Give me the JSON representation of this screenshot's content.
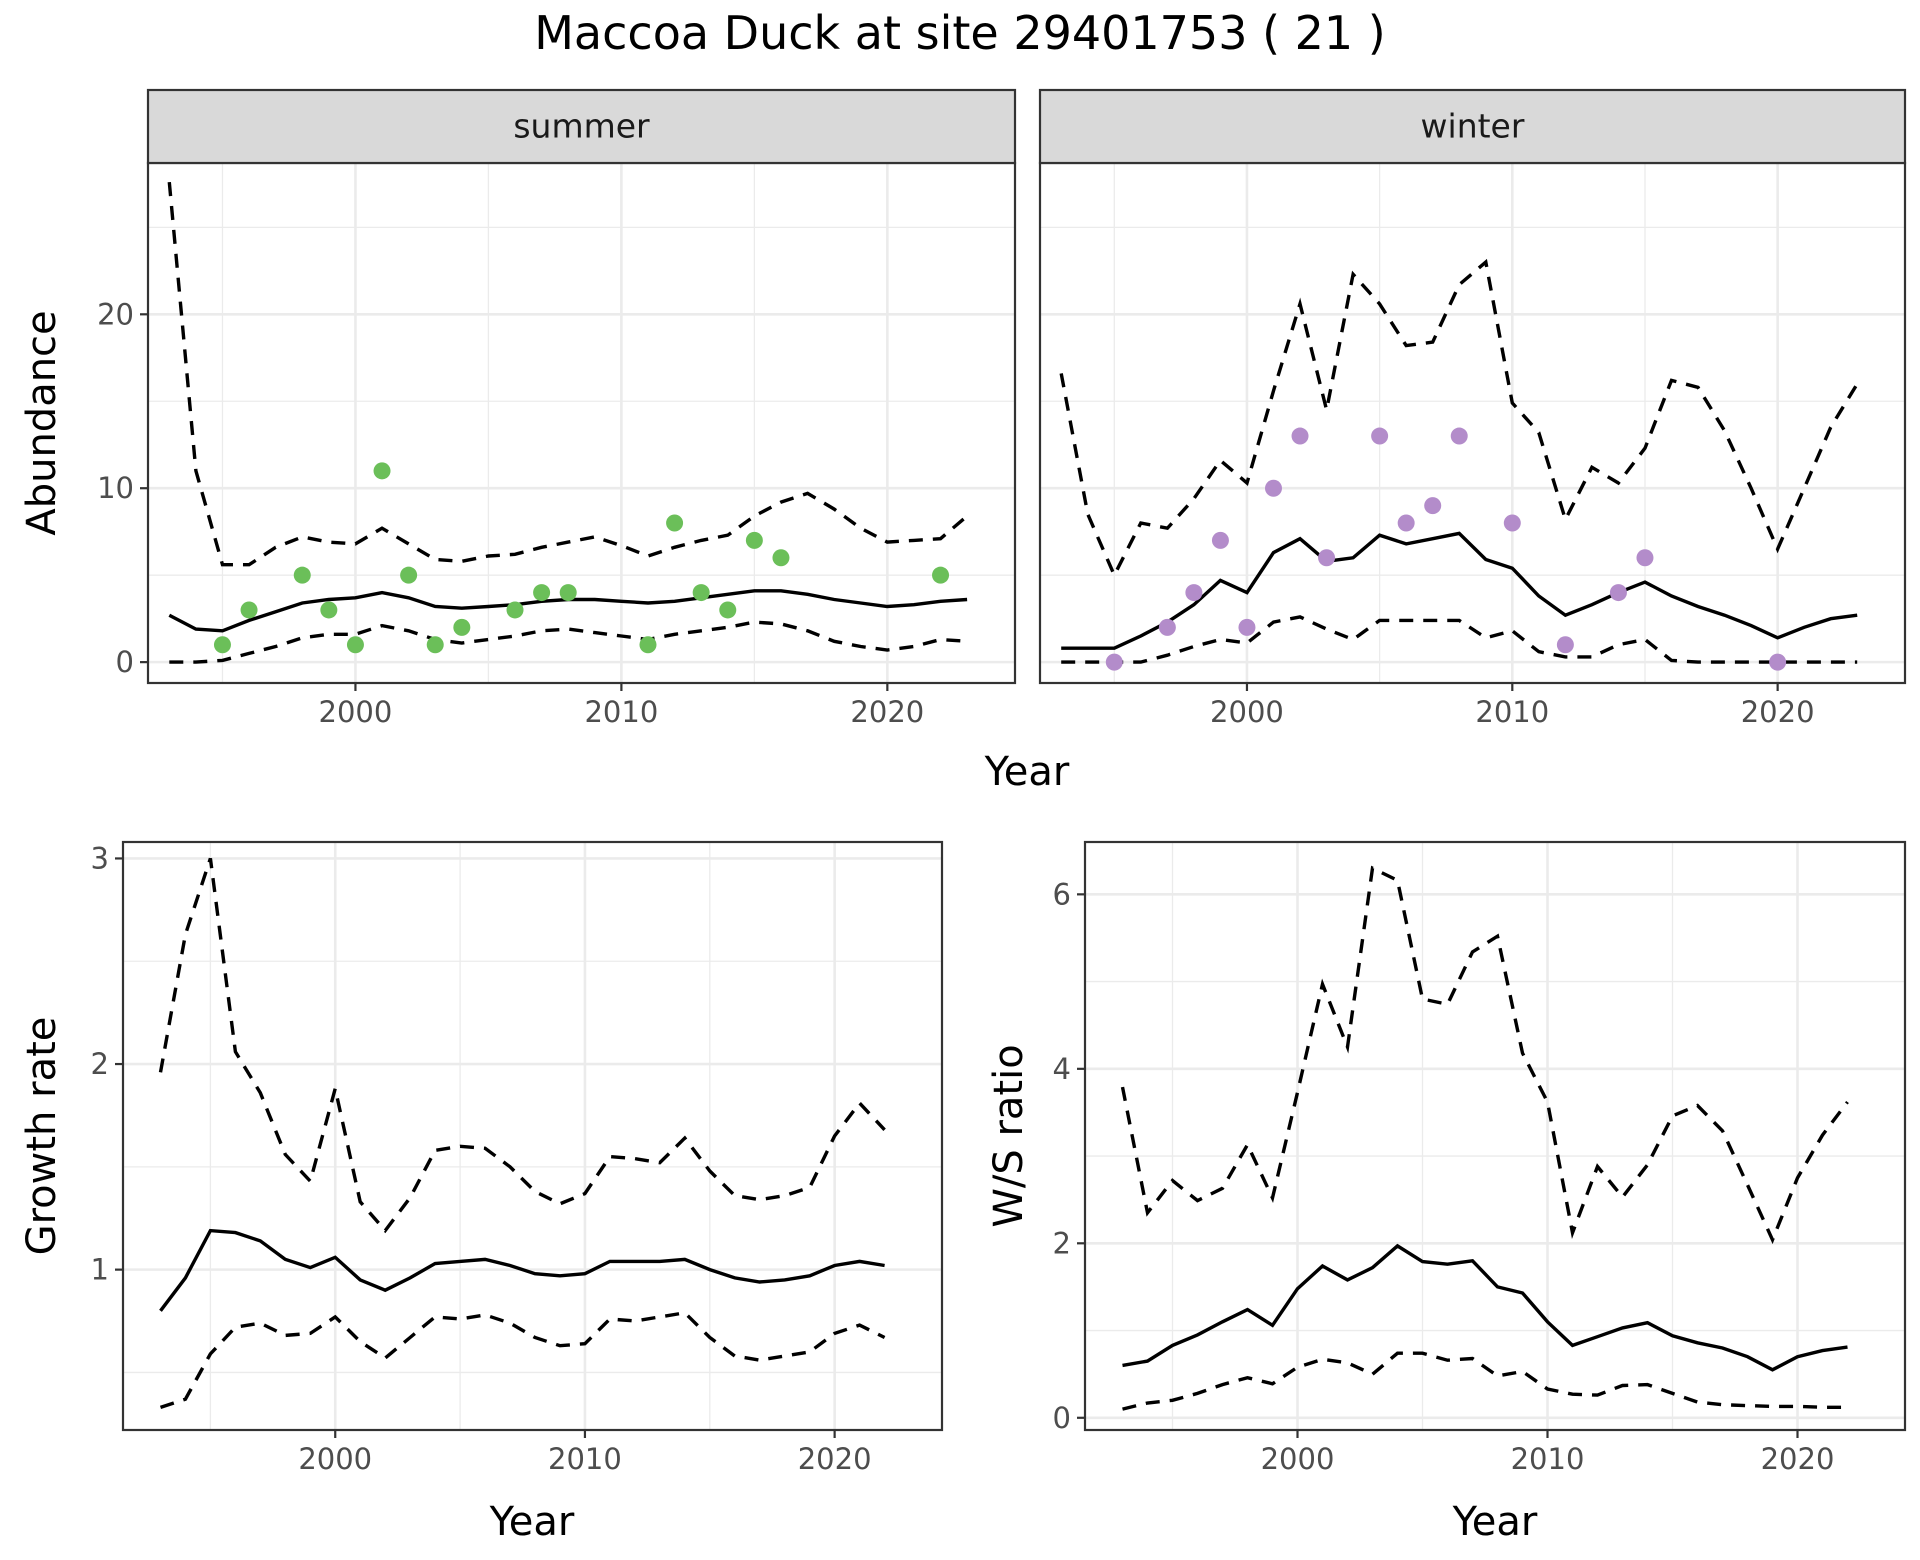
{
  "title": "Maccoa Duck at site 29401753 ( 21 )",
  "colors": {
    "summer_points": "#6bbf59",
    "winter_points": "#b38cca",
    "strip_fill": "#d9d9d9"
  },
  "chart_data": [
    {
      "type": "line",
      "facet": "summer",
      "ylabel": "Abundance",
      "xlabel": "Year",
      "xlim": [
        1992.2,
        2024.8
      ],
      "ylim": [
        -1.2,
        28.7
      ],
      "xticks": [
        2000,
        2010,
        2020
      ],
      "yticks": [
        0,
        10,
        20
      ],
      "x": [
        1993,
        1994,
        1995,
        1996,
        1997,
        1998,
        1999,
        2000,
        2001,
        2002,
        2003,
        2004,
        2005,
        2006,
        2007,
        2008,
        2009,
        2010,
        2011,
        2012,
        2013,
        2014,
        2015,
        2016,
        2017,
        2018,
        2019,
        2020,
        2021,
        2022,
        2023
      ],
      "series": [
        {
          "role": "estimate",
          "values": [
            2.7,
            1.9,
            1.8,
            2.4,
            2.9,
            3.4,
            3.6,
            3.7,
            4.0,
            3.7,
            3.2,
            3.1,
            3.2,
            3.3,
            3.5,
            3.6,
            3.6,
            3.5,
            3.4,
            3.5,
            3.7,
            3.9,
            4.1,
            4.1,
            3.9,
            3.6,
            3.4,
            3.2,
            3.3,
            3.5,
            3.6
          ]
        },
        {
          "role": "upper",
          "values": [
            27.6,
            11.0,
            5.6,
            5.6,
            6.6,
            7.2,
            6.9,
            6.8,
            7.7,
            6.8,
            5.9,
            5.8,
            6.1,
            6.2,
            6.6,
            6.9,
            7.2,
            6.7,
            6.1,
            6.6,
            7.0,
            7.3,
            8.4,
            9.2,
            9.7,
            8.8,
            7.7,
            6.9,
            7.0,
            7.1,
            8.4
          ]
        },
        {
          "role": "lower",
          "values": [
            0.0,
            0.0,
            0.1,
            0.5,
            0.9,
            1.4,
            1.6,
            1.6,
            2.1,
            1.8,
            1.3,
            1.1,
            1.3,
            1.5,
            1.8,
            1.9,
            1.7,
            1.5,
            1.3,
            1.6,
            1.8,
            2.0,
            2.3,
            2.2,
            1.8,
            1.2,
            0.9,
            0.7,
            0.9,
            1.3,
            1.2
          ]
        }
      ],
      "points": {
        "x": [
          1995,
          1996,
          1998,
          1999,
          2000,
          2001,
          2002,
          2003,
          2004,
          2006,
          2007,
          2008,
          2011,
          2012,
          2013,
          2014,
          2015,
          2016,
          2022
        ],
        "y": [
          1,
          3,
          5,
          3,
          1,
          11,
          5,
          1,
          2,
          3,
          4,
          4,
          1,
          8,
          4,
          3,
          7,
          6,
          5
        ]
      }
    },
    {
      "type": "line",
      "facet": "winter",
      "ylabel": "Abundance",
      "xlabel": "Year",
      "xlim": [
        1992.2,
        2024.8
      ],
      "ylim": [
        -1.2,
        28.7
      ],
      "xticks": [
        2000,
        2010,
        2020
      ],
      "yticks": [
        0,
        10,
        20
      ],
      "x": [
        1993,
        1994,
        1995,
        1996,
        1997,
        1998,
        1999,
        2000,
        2001,
        2002,
        2003,
        2004,
        2005,
        2006,
        2007,
        2008,
        2009,
        2010,
        2011,
        2012,
        2013,
        2014,
        2015,
        2016,
        2017,
        2018,
        2019,
        2020,
        2021,
        2022,
        2023
      ],
      "series": [
        {
          "role": "estimate",
          "values": [
            0.8,
            0.8,
            0.8,
            1.5,
            2.3,
            3.3,
            4.7,
            4.0,
            6.3,
            7.1,
            5.8,
            6.0,
            7.3,
            6.8,
            7.1,
            7.4,
            5.9,
            5.4,
            3.8,
            2.7,
            3.3,
            4.0,
            4.6,
            3.8,
            3.2,
            2.7,
            2.1,
            1.4,
            2.0,
            2.5,
            2.7
          ]
        },
        {
          "role": "upper",
          "values": [
            16.6,
            8.5,
            5.0,
            8.0,
            7.7,
            9.4,
            11.6,
            10.3,
            15.6,
            20.6,
            14.5,
            22.3,
            20.6,
            18.2,
            18.4,
            21.7,
            23.0,
            14.9,
            13.2,
            8.2,
            11.2,
            10.3,
            12.3,
            16.2,
            15.8,
            13.3,
            10.0,
            6.5,
            10.0,
            13.5,
            16.0
          ]
        },
        {
          "role": "lower",
          "values": [
            0.0,
            0.0,
            0.0,
            0.0,
            0.4,
            0.9,
            1.3,
            1.1,
            2.3,
            2.6,
            1.9,
            1.3,
            2.4,
            2.4,
            2.4,
            2.4,
            1.4,
            1.8,
            0.6,
            0.3,
            0.3,
            1.0,
            1.3,
            0.1,
            0.0,
            0.0,
            0.0,
            0.0,
            0.0,
            0.0,
            0.0
          ]
        }
      ],
      "points": {
        "x": [
          1995,
          1997,
          1998,
          1999,
          2000,
          2001,
          2002,
          2003,
          2005,
          2006,
          2007,
          2008,
          2010,
          2012,
          2014,
          2015,
          2020
        ],
        "y": [
          0,
          2,
          4,
          7,
          2,
          10,
          13,
          6,
          13,
          8,
          9,
          13,
          8,
          1,
          4,
          6,
          0
        ]
      }
    },
    {
      "type": "line",
      "ylabel": "Growth rate",
      "xlabel": "Year",
      "xlim": [
        1991.5,
        2024.3
      ],
      "ylim": [
        0.22,
        3.08
      ],
      "xticks": [
        2000,
        2010,
        2020
      ],
      "yticks": [
        1,
        2,
        3
      ],
      "x": [
        1993,
        1994,
        1995,
        1996,
        1997,
        1998,
        1999,
        2000,
        2001,
        2002,
        2003,
        2004,
        2005,
        2006,
        2007,
        2008,
        2009,
        2010,
        2011,
        2012,
        2013,
        2014,
        2015,
        2016,
        2017,
        2018,
        2019,
        2020,
        2021,
        2022
      ],
      "series": [
        {
          "role": "estimate",
          "values": [
            0.8,
            0.96,
            1.19,
            1.18,
            1.14,
            1.05,
            1.01,
            1.06,
            0.95,
            0.9,
            0.96,
            1.03,
            1.04,
            1.05,
            1.02,
            0.98,
            0.97,
            0.98,
            1.04,
            1.04,
            1.04,
            1.05,
            1.0,
            0.96,
            0.94,
            0.95,
            0.97,
            1.02,
            1.04,
            1.02
          ]
        },
        {
          "role": "upper",
          "values": [
            1.96,
            2.63,
            3.0,
            2.06,
            1.86,
            1.56,
            1.43,
            1.88,
            1.33,
            1.19,
            1.35,
            1.58,
            1.6,
            1.59,
            1.5,
            1.38,
            1.32,
            1.37,
            1.55,
            1.54,
            1.52,
            1.64,
            1.48,
            1.36,
            1.34,
            1.36,
            1.4,
            1.65,
            1.81,
            1.68
          ]
        },
        {
          "role": "lower",
          "values": [
            0.33,
            0.37,
            0.59,
            0.72,
            0.74,
            0.68,
            0.69,
            0.77,
            0.65,
            0.57,
            0.67,
            0.77,
            0.76,
            0.78,
            0.74,
            0.67,
            0.63,
            0.64,
            0.76,
            0.75,
            0.77,
            0.79,
            0.67,
            0.58,
            0.56,
            0.58,
            0.6,
            0.69,
            0.73,
            0.67
          ]
        }
      ]
    },
    {
      "type": "line",
      "ylabel": "W/S ratio",
      "xlabel": "Year",
      "xlim": [
        1991.5,
        2024.3
      ],
      "ylim": [
        -0.14,
        6.6
      ],
      "xticks": [
        2000,
        2010,
        2020
      ],
      "yticks": [
        0,
        2,
        4,
        6
      ],
      "x": [
        1993,
        1994,
        1995,
        1996,
        1997,
        1998,
        1999,
        2000,
        2001,
        2002,
        2003,
        2004,
        2005,
        2006,
        2007,
        2008,
        2009,
        2010,
        2011,
        2012,
        2013,
        2014,
        2015,
        2016,
        2017,
        2018,
        2019,
        2020,
        2021,
        2022
      ],
      "series": [
        {
          "role": "estimate",
          "values": [
            0.6,
            0.65,
            0.83,
            0.95,
            1.1,
            1.24,
            1.06,
            1.48,
            1.74,
            1.58,
            1.72,
            1.97,
            1.79,
            1.76,
            1.8,
            1.5,
            1.43,
            1.1,
            0.83,
            0.93,
            1.03,
            1.09,
            0.94,
            0.86,
            0.8,
            0.7,
            0.55,
            0.7,
            0.77,
            0.81
          ]
        },
        {
          "role": "upper",
          "values": [
            3.79,
            2.35,
            2.72,
            2.49,
            2.63,
            3.13,
            2.52,
            3.73,
            4.97,
            4.25,
            6.3,
            6.16,
            4.8,
            4.74,
            5.34,
            5.52,
            4.18,
            3.62,
            2.12,
            2.88,
            2.53,
            2.9,
            3.46,
            3.58,
            3.29,
            2.67,
            2.04,
            2.75,
            3.24,
            3.62
          ]
        },
        {
          "role": "lower",
          "values": [
            0.1,
            0.17,
            0.2,
            0.28,
            0.38,
            0.46,
            0.39,
            0.58,
            0.67,
            0.63,
            0.5,
            0.74,
            0.74,
            0.66,
            0.68,
            0.48,
            0.53,
            0.33,
            0.27,
            0.26,
            0.37,
            0.38,
            0.28,
            0.18,
            0.15,
            0.14,
            0.13,
            0.13,
            0.12,
            0.12
          ]
        }
      ]
    }
  ]
}
